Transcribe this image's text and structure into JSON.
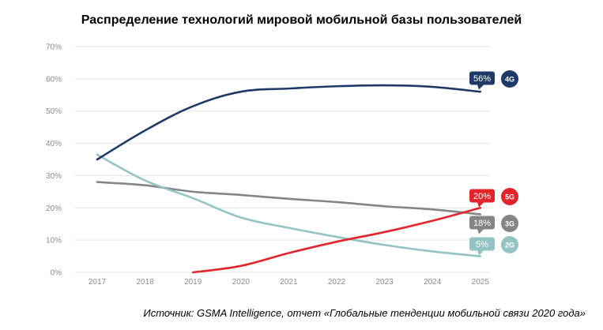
{
  "chart_data": {
    "type": "line",
    "title": "Распределение технологий мировой мобильной базы пользователей",
    "source": "Источник: GSMA Intelligence, отчет «Глобальные тенденции мобильной связи 2020 года»",
    "x": [
      2017,
      2018,
      2019,
      2020,
      2021,
      2022,
      2023,
      2024,
      2025
    ],
    "x_tick_labels": [
      "2017",
      "2018",
      "2019",
      "2020",
      "2021",
      "2022",
      "2023",
      "2024",
      "2025"
    ],
    "y_tick_labels": [
      "0%",
      "10%",
      "20%",
      "30%",
      "40%",
      "50%",
      "60%",
      "70%"
    ],
    "ylim": [
      0,
      70
    ],
    "grid": true,
    "series": [
      {
        "name": "4G",
        "color": "#1f3a68",
        "label": "56%",
        "values": [
          35,
          44,
          51.5,
          56,
          57,
          57.7,
          58,
          57.5,
          56
        ]
      },
      {
        "name": "5G",
        "color": "#e3242b",
        "label": "20%",
        "values": [
          null,
          null,
          0,
          2,
          6,
          9.5,
          12.5,
          16,
          20
        ]
      },
      {
        "name": "3G",
        "color": "#858585",
        "label": "18%",
        "values": [
          28,
          27,
          25,
          24,
          22.8,
          21.8,
          20.5,
          19.5,
          18
        ]
      },
      {
        "name": "2G",
        "color": "#93c4c3",
        "label": "5%",
        "values": [
          36.5,
          28.5,
          23,
          17,
          13.8,
          11,
          8.5,
          6.5,
          5
        ]
      }
    ]
  }
}
